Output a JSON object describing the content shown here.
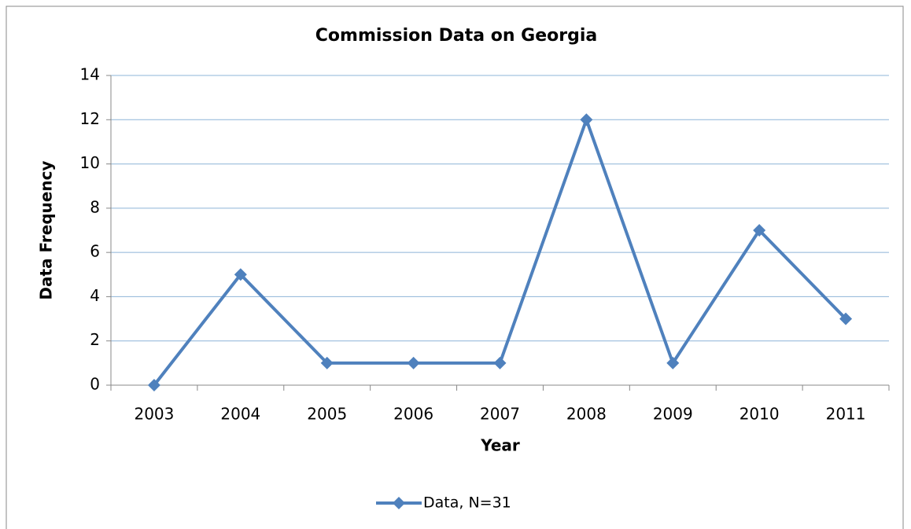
{
  "chart_data": {
    "type": "line",
    "title": "Commission Data on Georgia",
    "x_label": "Year",
    "y_label": "Data Frequency",
    "categories": [
      "2003",
      "2004",
      "2005",
      "2006",
      "2007",
      "2008",
      "2009",
      "2010",
      "2011"
    ],
    "series": [
      {
        "name": "Data, N=31",
        "color": "#4f81bd",
        "values": [
          0,
          5,
          1,
          1,
          1,
          12,
          1,
          7,
          3
        ]
      }
    ],
    "ylim": [
      0,
      14
    ],
    "yticks": [
      0,
      2,
      4,
      6,
      8,
      10,
      12,
      14
    ],
    "grid": true,
    "legend": "bottom"
  }
}
